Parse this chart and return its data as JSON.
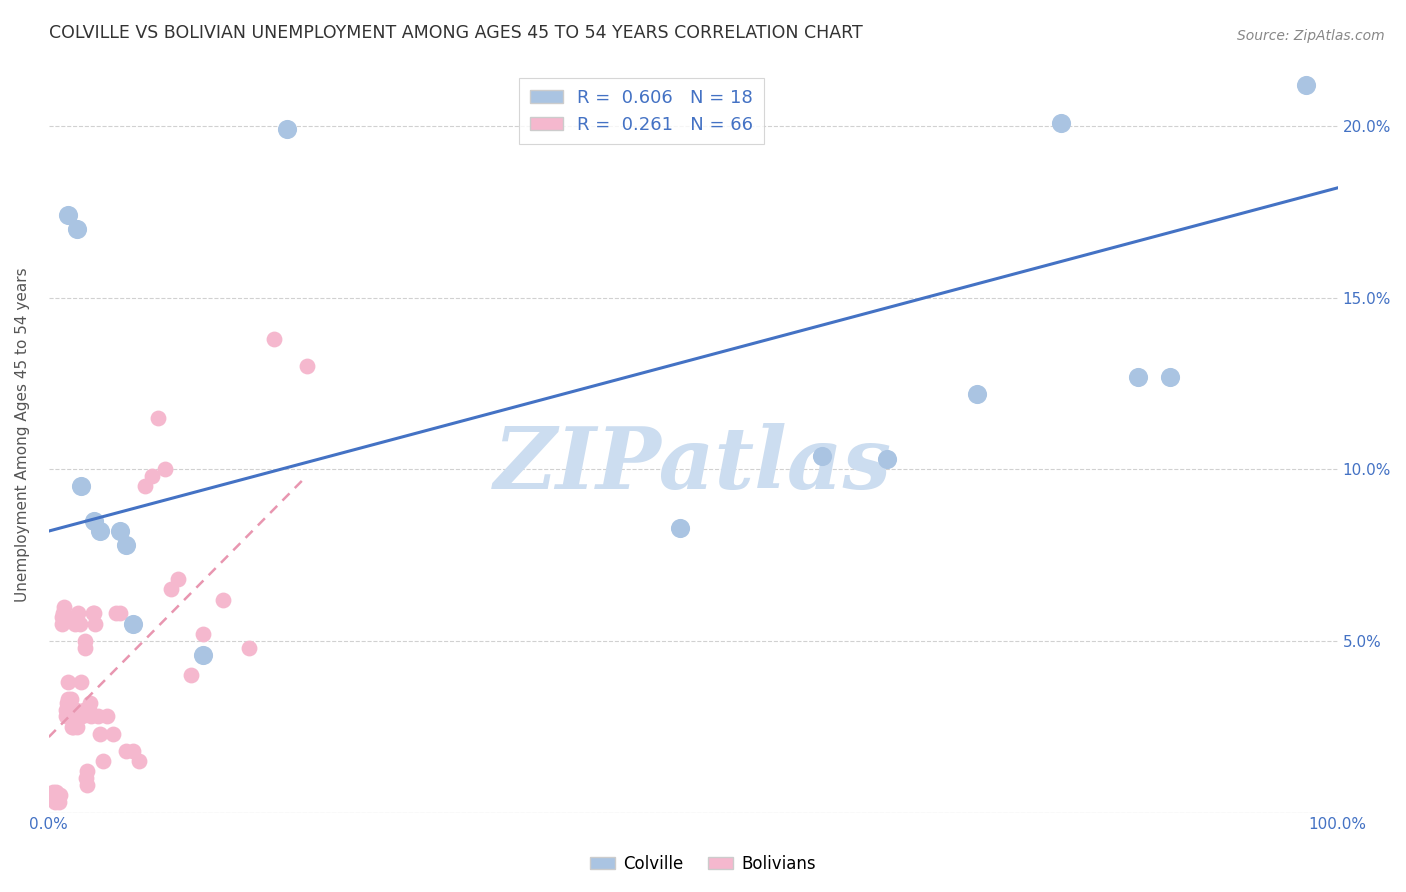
{
  "title": "COLVILLE VS BOLIVIAN UNEMPLOYMENT AMONG AGES 45 TO 54 YEARS CORRELATION CHART",
  "source": "Source: ZipAtlas.com",
  "ylabel": "Unemployment Among Ages 45 to 54 years",
  "xlim": [
    0,
    1.0
  ],
  "ylim": [
    0,
    0.22
  ],
  "x_ticks": [
    0.0,
    0.1,
    0.2,
    0.3,
    0.4,
    0.5,
    0.6,
    0.7,
    0.8,
    0.9,
    1.0
  ],
  "x_tick_labels": [
    "0.0%",
    "",
    "",
    "",
    "",
    "",
    "",
    "",
    "",
    "",
    "100.0%"
  ],
  "y_ticks": [
    0.0,
    0.05,
    0.1,
    0.15,
    0.2
  ],
  "y_tick_labels": [
    "",
    "5.0%",
    "10.0%",
    "15.0%",
    "20.0%"
  ],
  "colville_color": "#aac4e2",
  "bolivian_color": "#f5b8ce",
  "colville_R": 0.606,
  "colville_N": 18,
  "bolivian_R": 0.261,
  "bolivian_N": 66,
  "colville_x": [
    0.015,
    0.022,
    0.025,
    0.035,
    0.04,
    0.055,
    0.06,
    0.065,
    0.12,
    0.185,
    0.49,
    0.6,
    0.65,
    0.72,
    0.785,
    0.845,
    0.87,
    0.975
  ],
  "colville_y": [
    0.174,
    0.17,
    0.095,
    0.085,
    0.082,
    0.082,
    0.078,
    0.055,
    0.046,
    0.199,
    0.083,
    0.104,
    0.103,
    0.122,
    0.201,
    0.127,
    0.127,
    0.212
  ],
  "bolivian_x": [
    0.002,
    0.003,
    0.004,
    0.005,
    0.006,
    0.007,
    0.008,
    0.009,
    0.01,
    0.01,
    0.011,
    0.012,
    0.013,
    0.013,
    0.014,
    0.015,
    0.015,
    0.016,
    0.017,
    0.018,
    0.018,
    0.019,
    0.02,
    0.02,
    0.021,
    0.021,
    0.022,
    0.022,
    0.023,
    0.024,
    0.025,
    0.026,
    0.027,
    0.028,
    0.028,
    0.029,
    0.03,
    0.03,
    0.031,
    0.032,
    0.033,
    0.034,
    0.035,
    0.036,
    0.038,
    0.04,
    0.042,
    0.045,
    0.05,
    0.052,
    0.055,
    0.06,
    0.065,
    0.07,
    0.075,
    0.08,
    0.085,
    0.09,
    0.095,
    0.1,
    0.11,
    0.12,
    0.135,
    0.155,
    0.175,
    0.2
  ],
  "bolivian_y": [
    0.005,
    0.006,
    0.004,
    0.003,
    0.006,
    0.004,
    0.003,
    0.005,
    0.055,
    0.057,
    0.058,
    0.06,
    0.028,
    0.03,
    0.032,
    0.033,
    0.038,
    0.032,
    0.033,
    0.03,
    0.025,
    0.025,
    0.055,
    0.057,
    0.028,
    0.03,
    0.025,
    0.028,
    0.058,
    0.055,
    0.038,
    0.028,
    0.03,
    0.048,
    0.05,
    0.01,
    0.008,
    0.012,
    0.03,
    0.032,
    0.028,
    0.058,
    0.058,
    0.055,
    0.028,
    0.023,
    0.015,
    0.028,
    0.023,
    0.058,
    0.058,
    0.018,
    0.018,
    0.015,
    0.095,
    0.098,
    0.115,
    0.1,
    0.065,
    0.068,
    0.04,
    0.052,
    0.062,
    0.048,
    0.138,
    0.13
  ],
  "colville_line_x": [
    0.0,
    1.0
  ],
  "colville_line_y": [
    0.082,
    0.182
  ],
  "bolivian_line_x": [
    0.0,
    0.2
  ],
  "bolivian_line_y": [
    0.022,
    0.098
  ],
  "background_color": "#ffffff",
  "grid_color": "#cccccc",
  "watermark": "ZIPatlas",
  "watermark_color": "#ccddf0"
}
